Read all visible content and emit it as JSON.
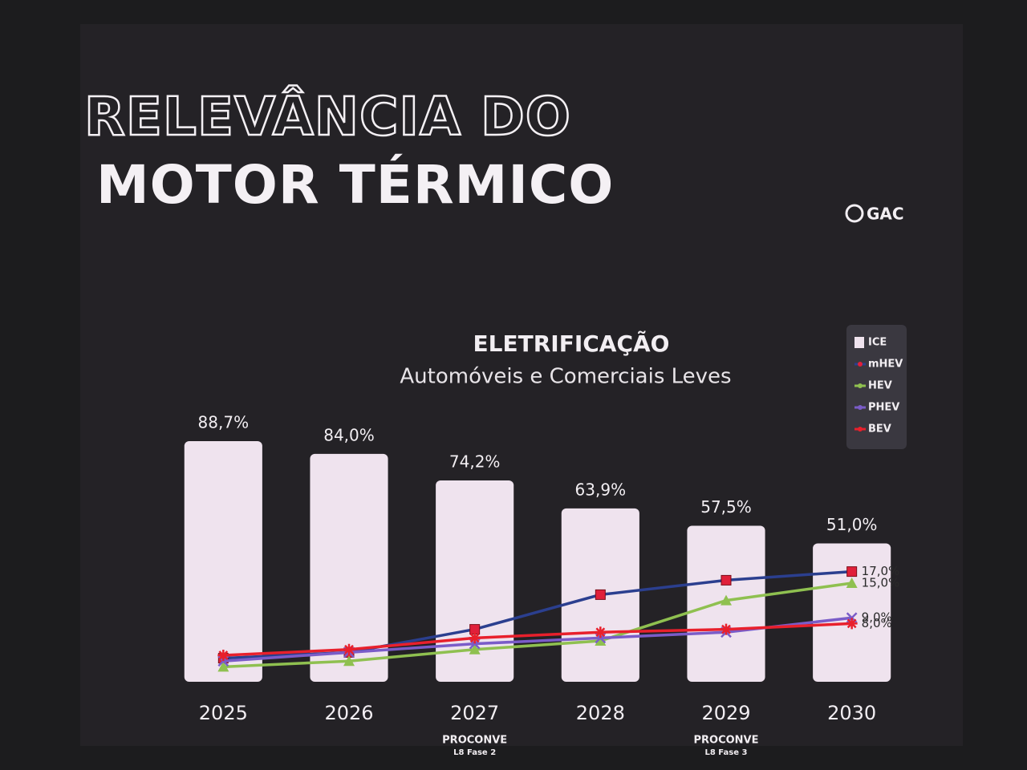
{
  "slide": {
    "title": [
      "RELEVÂNCIA DO",
      "MOTOR TÉRMICO"
    ],
    "logo": "GAC"
  },
  "chart_data": {
    "type": "bar",
    "title": "ELETRIFICAÇÃO",
    "subtitle": "Automóveis e Comerciais Leves",
    "categories": [
      "2025",
      "2026",
      "2027",
      "2028",
      "2029",
      "2030"
    ],
    "category_notes": [
      null,
      null,
      [
        "PROCONVE",
        "L8 Fase 2"
      ],
      null,
      [
        "PROCONVE",
        "L8 Fase 3"
      ],
      null
    ],
    "series": [
      {
        "name": "ICE",
        "type": "bar",
        "color": "#efe3ee",
        "values": [
          88.7,
          84.0,
          74.2,
          63.9,
          57.5,
          51.0
        ],
        "value_labels": [
          "88,7%",
          "84,0%",
          "74,2%",
          "63,9%",
          "57,5%",
          "51,0%"
        ]
      },
      {
        "name": "mHEV",
        "type": "line",
        "color": "#2b3f8f",
        "marker": "square",
        "marker_color": "#e0203a",
        "values": [
          2.0,
          3.0,
          7.0,
          13.0,
          15.5,
          17.0
        ],
        "value_labels": [
          null,
          null,
          null,
          null,
          null,
          "17,0%"
        ]
      },
      {
        "name": "HEV",
        "type": "line",
        "color": "#8fc050",
        "marker": "triangle",
        "marker_color": "#8fc050",
        "values": [
          0.5,
          1.5,
          3.5,
          5.0,
          12.0,
          15.0
        ],
        "value_labels": [
          null,
          null,
          null,
          null,
          null,
          "15,0%"
        ]
      },
      {
        "name": "PHEV",
        "type": "line",
        "color": "#7a5cc8",
        "marker": "x",
        "marker_color": "#7a5cc8",
        "values": [
          1.5,
          3.0,
          4.5,
          5.5,
          6.5,
          9.0
        ],
        "value_labels": [
          null,
          null,
          null,
          null,
          null,
          "9,0%"
        ]
      },
      {
        "name": "BEV",
        "type": "line",
        "color": "#e8202c",
        "marker": "star",
        "marker_color": "#e8202c",
        "values": [
          2.5,
          3.5,
          5.5,
          6.5,
          7.0,
          8.0
        ],
        "value_labels": [
          null,
          null,
          null,
          null,
          null,
          "8,0%"
        ]
      }
    ]
  }
}
